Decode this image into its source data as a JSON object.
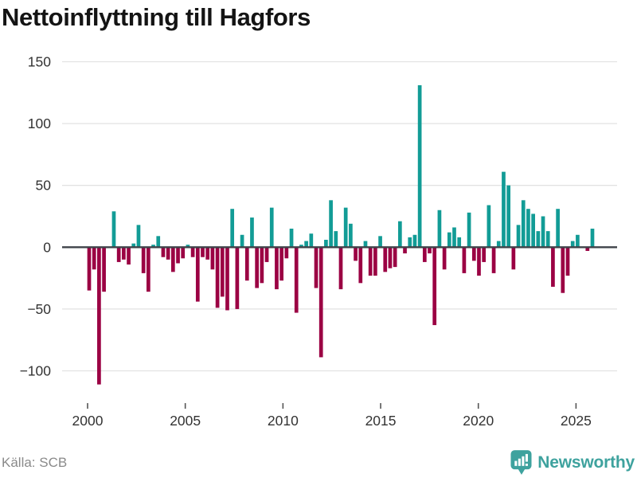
{
  "title": "Nettoinflyttning till Hagfors",
  "source": {
    "label": "Källa: SCB"
  },
  "branding": {
    "logo_text": "Newsworthy",
    "logo_icon": "bar-chart-speech-bubble-icon"
  },
  "colors": {
    "positive": "#129c96",
    "negative": "#9b0043",
    "grid": "#e2e2e2",
    "zero_line": "#3f4349",
    "axis_text": "#333333",
    "tick_mark": "#555555",
    "title_text": "#141414",
    "source_text": "#8a8a8a",
    "brand_teal": "#3ea29e"
  },
  "chart_data": {
    "type": "bar",
    "title": "Nettoinflyttning till Hagfors",
    "xlabel": "",
    "ylabel": "",
    "frequency": "quarterly",
    "start_period": "2000 Q1",
    "end_period": "2025 Q3",
    "grid": true,
    "legend": false,
    "ylim": [
      -126,
      155
    ],
    "y_ticks": [
      150,
      100,
      50,
      0,
      -50,
      -100
    ],
    "y_tick_labels": [
      "150",
      "100",
      "50",
      "0",
      "−50",
      "−100"
    ],
    "x_tick_years": [
      2000,
      2005,
      2010,
      2015,
      2020,
      2025
    ],
    "x_tick_labels": [
      "2000",
      "2005",
      "2010",
      "2015",
      "2020",
      "2025"
    ],
    "values": [
      -35,
      -18,
      -111,
      -36,
      0,
      29,
      -12,
      -10,
      -14,
      3,
      18,
      -21,
      -36,
      2,
      9,
      -8,
      -10,
      -20,
      -13,
      -9,
      2,
      -8,
      -44,
      -8,
      -10,
      -18,
      -49,
      -40,
      -51,
      31,
      -50,
      10,
      -27,
      24,
      -33,
      -29,
      -12,
      32,
      -34,
      -27,
      -9,
      15,
      -53,
      2,
      5,
      11,
      -33,
      -89,
      6,
      38,
      13,
      -34,
      32,
      19,
      -11,
      -29,
      5,
      -23,
      -23,
      9,
      -20,
      -17,
      -16,
      21,
      -5,
      8,
      10,
      131,
      -12,
      -5,
      -63,
      30,
      -18,
      12,
      16,
      8,
      -21,
      28,
      -11,
      -23,
      -12,
      34,
      -21,
      5,
      61,
      50,
      -18,
      18,
      38,
      31,
      27,
      13,
      25,
      13,
      -32,
      31,
      -37,
      -23,
      5,
      10,
      0,
      -3,
      15
    ]
  }
}
